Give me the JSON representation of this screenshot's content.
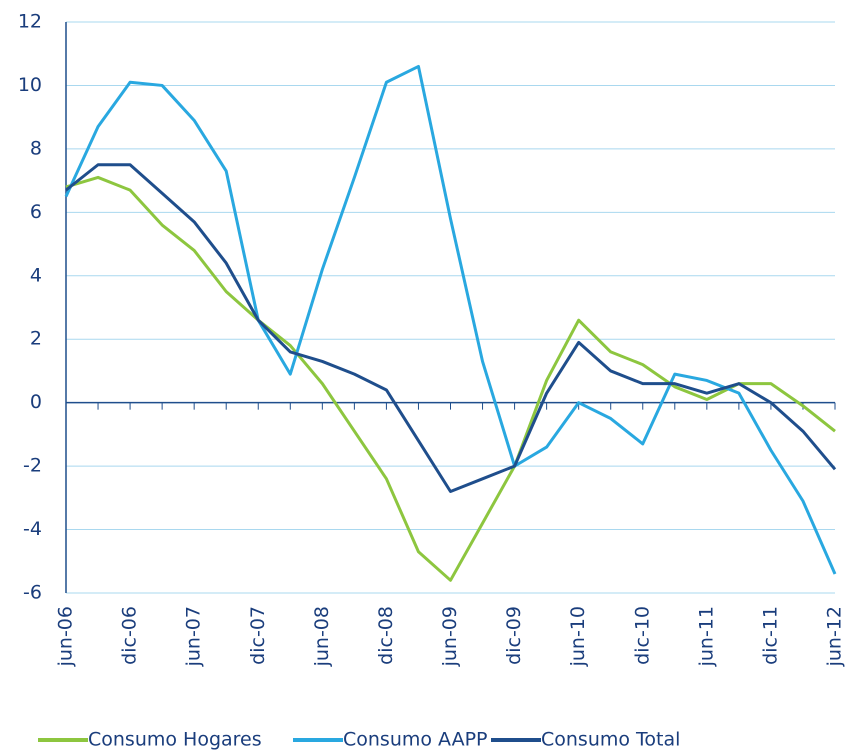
{
  "chart_data": {
    "type": "line",
    "categories": [
      "jun-06",
      null,
      "dic-06",
      null,
      "jun-07",
      null,
      "dic-07",
      null,
      "jun-08",
      null,
      "dic-08",
      null,
      "jun-09",
      null,
      "dic-09",
      null,
      "jun-10",
      null,
      "dic-10",
      null,
      "jun-11",
      null,
      "dic-11",
      null,
      "jun-12"
    ],
    "series": [
      {
        "name": "Consumo Hogares",
        "color": "#8dc63f",
        "values": [
          6.8,
          7.1,
          6.7,
          5.6,
          4.8,
          3.5,
          2.6,
          1.8,
          0.6,
          -0.9,
          -2.4,
          -4.7,
          -5.6,
          -3.8,
          -2.0,
          0.7,
          2.6,
          1.6,
          1.2,
          0.5,
          0.1,
          0.6,
          0.6,
          -0.1,
          -0.9
        ]
      },
      {
        "name": "Consumo AAPP",
        "color": "#29a8e0",
        "values": [
          6.5,
          8.7,
          10.1,
          10.0,
          8.9,
          7.3,
          2.6,
          0.9,
          4.2,
          7.1,
          10.1,
          10.6,
          5.8,
          1.3,
          -2.0,
          -1.4,
          0.0,
          -0.5,
          -1.3,
          0.9,
          0.7,
          0.3,
          -1.5,
          -3.1,
          -5.4
        ]
      },
      {
        "name": "Consumo Total",
        "color": "#1f4e8c",
        "values": [
          6.7,
          7.5,
          7.5,
          6.6,
          5.7,
          4.4,
          2.6,
          1.6,
          1.3,
          0.9,
          0.4,
          -1.2,
          -2.8,
          -2.4,
          -2.0,
          0.3,
          1.9,
          1.0,
          0.6,
          0.6,
          0.3,
          0.6,
          0.0,
          -0.9,
          -2.1
        ]
      }
    ],
    "ylim": [
      -6,
      12
    ],
    "yticks": [
      -6,
      -4,
      -2,
      0,
      2,
      4,
      6,
      8,
      10,
      12
    ],
    "grid": true
  }
}
